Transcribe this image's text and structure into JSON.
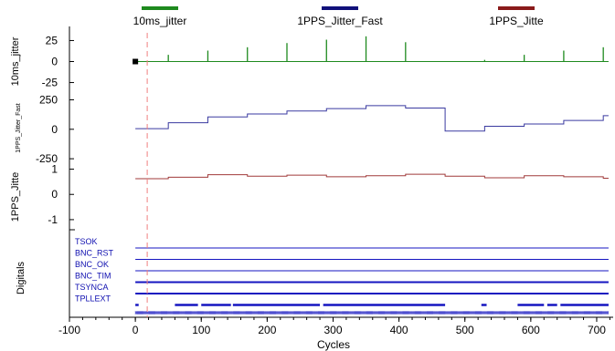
{
  "chart_data": {
    "type": "line",
    "xlabel": "Cycles",
    "xlim": [
      -100,
      725
    ],
    "x_ticks": [
      -100,
      0,
      100,
      200,
      300,
      400,
      500,
      600,
      700
    ],
    "cursor_x": 18,
    "legend": [
      {
        "name": "10ms_jitter",
        "color": "#1e8a1e"
      },
      {
        "name": "1PPS_Jitter_Fast",
        "color": "#10107a"
      },
      {
        "name": "1PPS_Jitte",
        "color": "#8a1a1a"
      }
    ],
    "panels": [
      {
        "id": "p1",
        "ylabel": "10ms_jitter",
        "ylim": [
          -32,
          32
        ],
        "y_ticks": [
          25,
          0,
          -25
        ],
        "series": {
          "name": "10ms_jitter",
          "color": "#1e8a1e",
          "baseline": 0,
          "spikes": [
            {
              "x": 50,
              "y": 8
            },
            {
              "x": 110,
              "y": 13
            },
            {
              "x": 170,
              "y": 17
            },
            {
              "x": 230,
              "y": 22
            },
            {
              "x": 290,
              "y": 26
            },
            {
              "x": 350,
              "y": 30
            },
            {
              "x": 410,
              "y": 23
            },
            {
              "x": 530,
              "y": 2
            },
            {
              "x": 590,
              "y": 8
            },
            {
              "x": 650,
              "y": 13
            },
            {
              "x": 710,
              "y": 17
            }
          ],
          "x_start": 0,
          "x_end": 718,
          "marker": {
            "x": 0,
            "y": 0
          }
        }
      },
      {
        "id": "p2",
        "ylabel": "1PPS_Jitter_Fast",
        "ylim": [
          -280,
          300
        ],
        "y_ticks": [
          250,
          0,
          -250
        ],
        "series": {
          "name": "1PPS_Jitter_Fast",
          "color": "#3a3aa0",
          "step_x": [
            0,
            50,
            110,
            170,
            230,
            290,
            350,
            410,
            470,
            530,
            590,
            650,
            710,
            718
          ],
          "step_y": [
            5,
            55,
            105,
            130,
            155,
            175,
            200,
            180,
            -15,
            25,
            45,
            75,
            115
          ]
        }
      },
      {
        "id": "p3",
        "ylabel": "1PPS_Jitte",
        "ylim": [
          -1.4,
          1.2
        ],
        "y_ticks": [
          1,
          0,
          -1
        ],
        "series": {
          "name": "1PPS_Jitte",
          "color": "#a03a3a",
          "step_x": [
            0,
            50,
            110,
            170,
            230,
            290,
            350,
            410,
            470,
            530,
            590,
            650,
            710,
            718
          ],
          "step_y": [
            0.62,
            0.68,
            0.78,
            0.72,
            0.76,
            0.7,
            0.74,
            0.8,
            0.72,
            0.66,
            0.74,
            0.7,
            0.64
          ]
        }
      }
    ],
    "digitals": {
      "ylabel": "Digitals",
      "color": "#1515c0",
      "channels": [
        {
          "name": "TSOK",
          "kind": "high"
        },
        {
          "name": "BNC_RST",
          "kind": "high"
        },
        {
          "name": "BNC_OK",
          "kind": "high"
        },
        {
          "name": "BNC_TIM",
          "kind": "high-thick"
        },
        {
          "name": "TSYNCA",
          "kind": "high-thick"
        },
        {
          "name": "TPLLEXT",
          "kind": "pulses",
          "segments": [
            [
              0,
              5
            ],
            [
              60,
              95
            ],
            [
              100,
              145
            ],
            [
              148,
              280
            ],
            [
              285,
              470
            ],
            [
              525,
              533
            ],
            [
              580,
              620
            ],
            [
              625,
              640
            ],
            [
              645,
              718
            ]
          ]
        }
      ],
      "clock_row": true
    }
  }
}
